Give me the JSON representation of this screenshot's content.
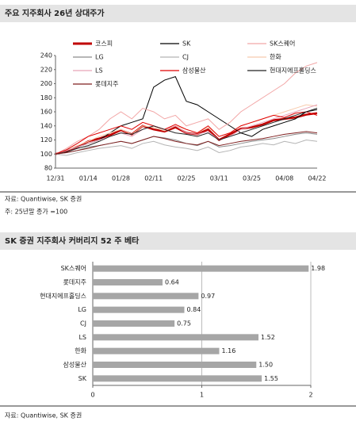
{
  "chart_data": [
    {
      "type": "line",
      "title": "주요 지주회사 26년 상대주가",
      "categories": [
        "12/31",
        null,
        null,
        "01/14",
        null,
        null,
        "01/28",
        null,
        null,
        "02/11",
        null,
        null,
        "02/25",
        null,
        null,
        "03/11",
        null,
        null,
        "03/25",
        null,
        null,
        "04/08",
        null,
        null,
        "04/22"
      ],
      "ylim": [
        80,
        240
      ],
      "yticks": [
        80,
        100,
        120,
        140,
        160,
        180,
        200,
        220,
        240
      ],
      "series": [
        {
          "name": "코스피",
          "color": "#c00000",
          "values": [
            100,
            104,
            110,
            118,
            122,
            127,
            134,
            128,
            140,
            135,
            132,
            138,
            130,
            128,
            135,
            120,
            128,
            136,
            138,
            142,
            148,
            150,
            152,
            156,
            158
          ]
        },
        {
          "name": "SK",
          "color": "#000000",
          "values": [
            100,
            106,
            110,
            115,
            120,
            130,
            140,
            145,
            150,
            195,
            205,
            210,
            175,
            170,
            160,
            150,
            140,
            130,
            125,
            135,
            140,
            145,
            150,
            160,
            165
          ]
        },
        {
          "name": "SK스퀘어",
          "color": "#f2a6a6",
          "values": [
            100,
            108,
            118,
            125,
            135,
            150,
            160,
            150,
            165,
            160,
            150,
            155,
            140,
            145,
            150,
            135,
            145,
            160,
            170,
            180,
            190,
            200,
            215,
            225,
            230
          ]
        },
        {
          "name": "LG",
          "color": "#8c8c8c",
          "values": [
            100,
            102,
            105,
            110,
            112,
            115,
            118,
            115,
            120,
            125,
            123,
            120,
            115,
            112,
            118,
            110,
            112,
            115,
            118,
            120,
            122,
            125,
            128,
            130,
            128
          ]
        },
        {
          "name": "CJ",
          "color": "#b4b4b4",
          "values": [
            100,
            98,
            102,
            105,
            108,
            110,
            112,
            108,
            115,
            118,
            113,
            110,
            108,
            105,
            110,
            102,
            105,
            110,
            112,
            115,
            113,
            118,
            115,
            120,
            118
          ]
        },
        {
          "name": "한화",
          "color": "#f8cbad",
          "values": [
            100,
            105,
            112,
            118,
            125,
            130,
            135,
            128,
            140,
            138,
            133,
            140,
            135,
            130,
            138,
            125,
            130,
            140,
            145,
            150,
            155,
            160,
            165,
            170,
            168
          ]
        },
        {
          "name": "LS",
          "color": "#e8a4b8",
          "values": [
            100,
            105,
            110,
            115,
            120,
            125,
            130,
            125,
            135,
            140,
            135,
            140,
            130,
            128,
            132,
            120,
            125,
            135,
            140,
            145,
            150,
            155,
            160,
            165,
            170
          ]
        },
        {
          "name": "삼성물산",
          "color": "#e00000",
          "values": [
            100,
            106,
            115,
            125,
            130,
            135,
            140,
            135,
            145,
            140,
            135,
            142,
            135,
            130,
            140,
            125,
            130,
            140,
            145,
            150,
            155,
            152,
            158,
            160,
            155
          ]
        },
        {
          "name": "현대지에프홀딩스",
          "color": "#222222",
          "values": [
            100,
            103,
            108,
            112,
            118,
            125,
            130,
            128,
            135,
            140,
            135,
            130,
            128,
            125,
            130,
            120,
            125,
            130,
            135,
            140,
            145,
            150,
            155,
            160,
            163
          ]
        },
        {
          "name": "롯데지주",
          "color": "#7f1f1f",
          "values": [
            100,
            102,
            105,
            108,
            112,
            115,
            118,
            115,
            120,
            125,
            122,
            118,
            115,
            113,
            118,
            112,
            115,
            118,
            120,
            122,
            125,
            128,
            130,
            132,
            130
          ]
        }
      ],
      "source": "자료: Quantiwise, SK 증권",
      "note": "주: 25년말 종가 =100"
    },
    {
      "type": "hbar",
      "title": "SK 증권 지주회사 커버리지 52 주 베타",
      "categories": [
        "SK스퀘어",
        "롯데지주",
        "현대지에프홀딩스",
        "LG",
        "CJ",
        "LS",
        "한화",
        "삼성물산",
        "SK"
      ],
      "values": [
        1.98,
        0.64,
        0.97,
        0.84,
        0.75,
        1.52,
        1.16,
        1.5,
        1.55
      ],
      "value_labels": [
        "1.98",
        "0.64",
        "0.97",
        "0.84",
        "0.75",
        "1.52",
        "1.16",
        "1.50",
        "1.55"
      ],
      "color": "#a6a6a6",
      "xlim": [
        0,
        2
      ],
      "xticks": [
        0,
        1,
        2
      ],
      "grid": true,
      "source": "자료: Quantiwise, SK 증권"
    }
  ]
}
